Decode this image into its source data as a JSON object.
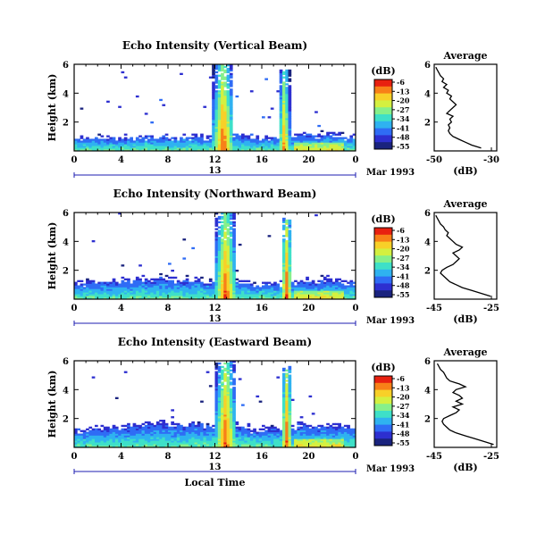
{
  "colors": {
    "scale": [
      "#1a237e",
      "#2d2fd0",
      "#2f6cf5",
      "#2fb2f0",
      "#3ee0c8",
      "#86f08a",
      "#d4f040",
      "#f8d028",
      "#f88018",
      "#e82010"
    ],
    "text": "#000000",
    "timeline": "#1c1cb0"
  },
  "chart_data": [
    {
      "type": "heatmap",
      "title": "Echo Intensity (Vertical Beam)",
      "ylabel": "Height (km)",
      "xlabel": "",
      "x_ticks": [
        "0",
        "4",
        "8",
        "12",
        "16",
        "20",
        "0"
      ],
      "y_ticks": [
        "2",
        "4",
        "6"
      ],
      "xlim": [
        0,
        24
      ],
      "ylim": [
        0,
        6
      ],
      "colorbar": {
        "label": "(dB)",
        "ticks": [
          "-6",
          "-13",
          "-20",
          "-27",
          "-34",
          "-41",
          "-48",
          "-55"
        ],
        "range": [
          -55,
          -6
        ]
      },
      "date_marker": {
        "day": "13",
        "month_year": "Mar 1993"
      },
      "profile": {
        "title": "Average",
        "xlabel": "(dB)",
        "x_ticks": [
          "-50",
          "-30"
        ],
        "xlim": [
          -50,
          -30
        ],
        "y_ticks": [
          "2",
          "4",
          "6"
        ],
        "heights": [
          0.2,
          0.4,
          0.6,
          0.8,
          1.0,
          1.2,
          1.4,
          1.6,
          1.8,
          2.0,
          2.2,
          2.4,
          2.6,
          2.8,
          3.0,
          3.2,
          3.4,
          3.6,
          3.8,
          4.0,
          4.2,
          4.4,
          4.6,
          4.8,
          5.0,
          5.2,
          5.4,
          5.6,
          5.8
        ],
        "values": [
          -35,
          -38,
          -40,
          -42,
          -44,
          -45,
          -45.5,
          -45,
          -45.5,
          -44.5,
          -45,
          -44,
          -46,
          -45,
          -44,
          -43,
          -44,
          -45,
          -44.5,
          -46,
          -45.5,
          -47,
          -46,
          -47.5,
          -47,
          -48,
          -48.5,
          -49,
          -49.5
        ]
      },
      "mean_height_km": [
        0.6,
        0.6,
        0.6,
        0.6,
        0.6,
        0.6,
        0.7,
        0.7,
        0.6,
        0.7,
        0.7,
        0.6,
        0.8,
        0.9,
        0.7,
        0.6,
        0.6,
        0.6,
        0.7,
        0.8,
        0.7,
        0.9,
        0.8,
        0.7
      ],
      "cells_dB": [
        {
          "time_h": 12.6,
          "height_km": [
            0,
            6
          ],
          "peak_dB": -6
        },
        {
          "time_h": 17.8,
          "height_km": [
            0,
            5.6
          ],
          "peak_dB": -10
        }
      ]
    },
    {
      "type": "heatmap",
      "title": "Echo Intensity (Northward Beam)",
      "ylabel": "Height (km)",
      "xlabel": "",
      "x_ticks": [
        "0",
        "4",
        "8",
        "12",
        "16",
        "20",
        "0"
      ],
      "y_ticks": [
        "2",
        "4",
        "6"
      ],
      "xlim": [
        0,
        24
      ],
      "ylim": [
        0,
        6
      ],
      "colorbar": {
        "label": "(dB)",
        "ticks": [
          "-6",
          "-13",
          "-20",
          "-27",
          "-34",
          "-41",
          "-48",
          "-55"
        ],
        "range": [
          -55,
          -6
        ]
      },
      "date_marker": {
        "day": "13",
        "month_year": "Mar 1993"
      },
      "profile": {
        "title": "Average",
        "xlabel": "(dB)",
        "x_ticks": [
          "-45",
          "-25"
        ],
        "xlim": [
          -45,
          -25
        ],
        "y_ticks": [
          "2",
          "4",
          "6"
        ],
        "heights": [
          0.2,
          0.4,
          0.6,
          0.8,
          1.0,
          1.2,
          1.4,
          1.6,
          1.8,
          2.0,
          2.2,
          2.4,
          2.6,
          2.8,
          3.0,
          3.2,
          3.4,
          3.6,
          3.8,
          4.0,
          4.2,
          4.4,
          4.6,
          4.8,
          5.0,
          5.2,
          5.4,
          5.6,
          5.8
        ],
        "values": [
          -27,
          -30,
          -33,
          -36,
          -38,
          -40,
          -41,
          -42,
          -43,
          -42.5,
          -41,
          -39,
          -38,
          -37,
          -38,
          -39,
          -37,
          -36,
          -38,
          -39,
          -40,
          -41,
          -40.5,
          -41.5,
          -42,
          -43,
          -43.5,
          -44,
          -44.5
        ]
      },
      "mean_height_km": [
        0.8,
        0.9,
        0.9,
        0.9,
        1.0,
        1.1,
        1.1,
        1.2,
        1.0,
        1.0,
        1.1,
        0.9,
        0.8,
        1.0,
        1.0,
        0.7,
        0.8,
        0.8,
        0.9,
        1.0,
        0.9,
        1.1,
        1.0,
        0.9
      ],
      "cells_dB": [
        {
          "time_h": 12.8,
          "height_km": [
            0,
            6
          ],
          "peak_dB": -6
        },
        {
          "time_h": 18.0,
          "height_km": [
            0,
            5.6
          ],
          "peak_dB": -8
        }
      ]
    },
    {
      "type": "heatmap",
      "title": "Echo Intensity (Eastward Beam)",
      "ylabel": "Height (km)",
      "xlabel": "Local Time",
      "x_ticks": [
        "0",
        "4",
        "8",
        "12",
        "16",
        "20",
        "0"
      ],
      "y_ticks": [
        "2",
        "4",
        "6"
      ],
      "xlim": [
        0,
        24
      ],
      "ylim": [
        0,
        6
      ],
      "colorbar": {
        "label": "(dB)",
        "ticks": [
          "-6",
          "-13",
          "-20",
          "-27",
          "-34",
          "-41",
          "-48",
          "-55"
        ],
        "range": [
          -55,
          -6
        ]
      },
      "date_marker": {
        "day": "13",
        "month_year": "Mar 1993"
      },
      "profile": {
        "title": "Average",
        "xlabel": "(dB)",
        "x_ticks": [
          "-45",
          "-25"
        ],
        "xlim": [
          -45,
          -25
        ],
        "y_ticks": [
          "2",
          "4",
          "6"
        ],
        "heights": [
          0.2,
          0.4,
          0.6,
          0.8,
          1.0,
          1.2,
          1.4,
          1.6,
          1.8,
          2.0,
          2.2,
          2.4,
          2.6,
          2.8,
          3.0,
          3.2,
          3.4,
          3.6,
          3.8,
          4.0,
          4.2,
          4.4,
          4.6,
          4.8,
          5.0,
          5.2,
          5.4,
          5.6,
          5.8
        ],
        "values": [
          -26,
          -29,
          -32,
          -35,
          -38,
          -40,
          -41,
          -42,
          -42.5,
          -42,
          -40,
          -38,
          -37,
          -39,
          -36,
          -38,
          -36,
          -37,
          -39,
          -38,
          -35,
          -37,
          -40,
          -41,
          -41.5,
          -42,
          -43,
          -43.5,
          -44
        ]
      },
      "mean_height_km": [
        0.9,
        1.0,
        1.0,
        1.1,
        1.2,
        1.3,
        1.3,
        1.4,
        1.3,
        1.3,
        1.4,
        1.2,
        1.0,
        1.2,
        1.2,
        0.9,
        1.0,
        1.0,
        1.1,
        1.3,
        1.2,
        1.3,
        1.2,
        1.1
      ],
      "cells_dB": [
        {
          "time_h": 12.8,
          "height_km": [
            0,
            6
          ],
          "peak_dB": -6
        },
        {
          "time_h": 18.0,
          "height_km": [
            0,
            5.6
          ],
          "peak_dB": -8
        }
      ]
    }
  ]
}
